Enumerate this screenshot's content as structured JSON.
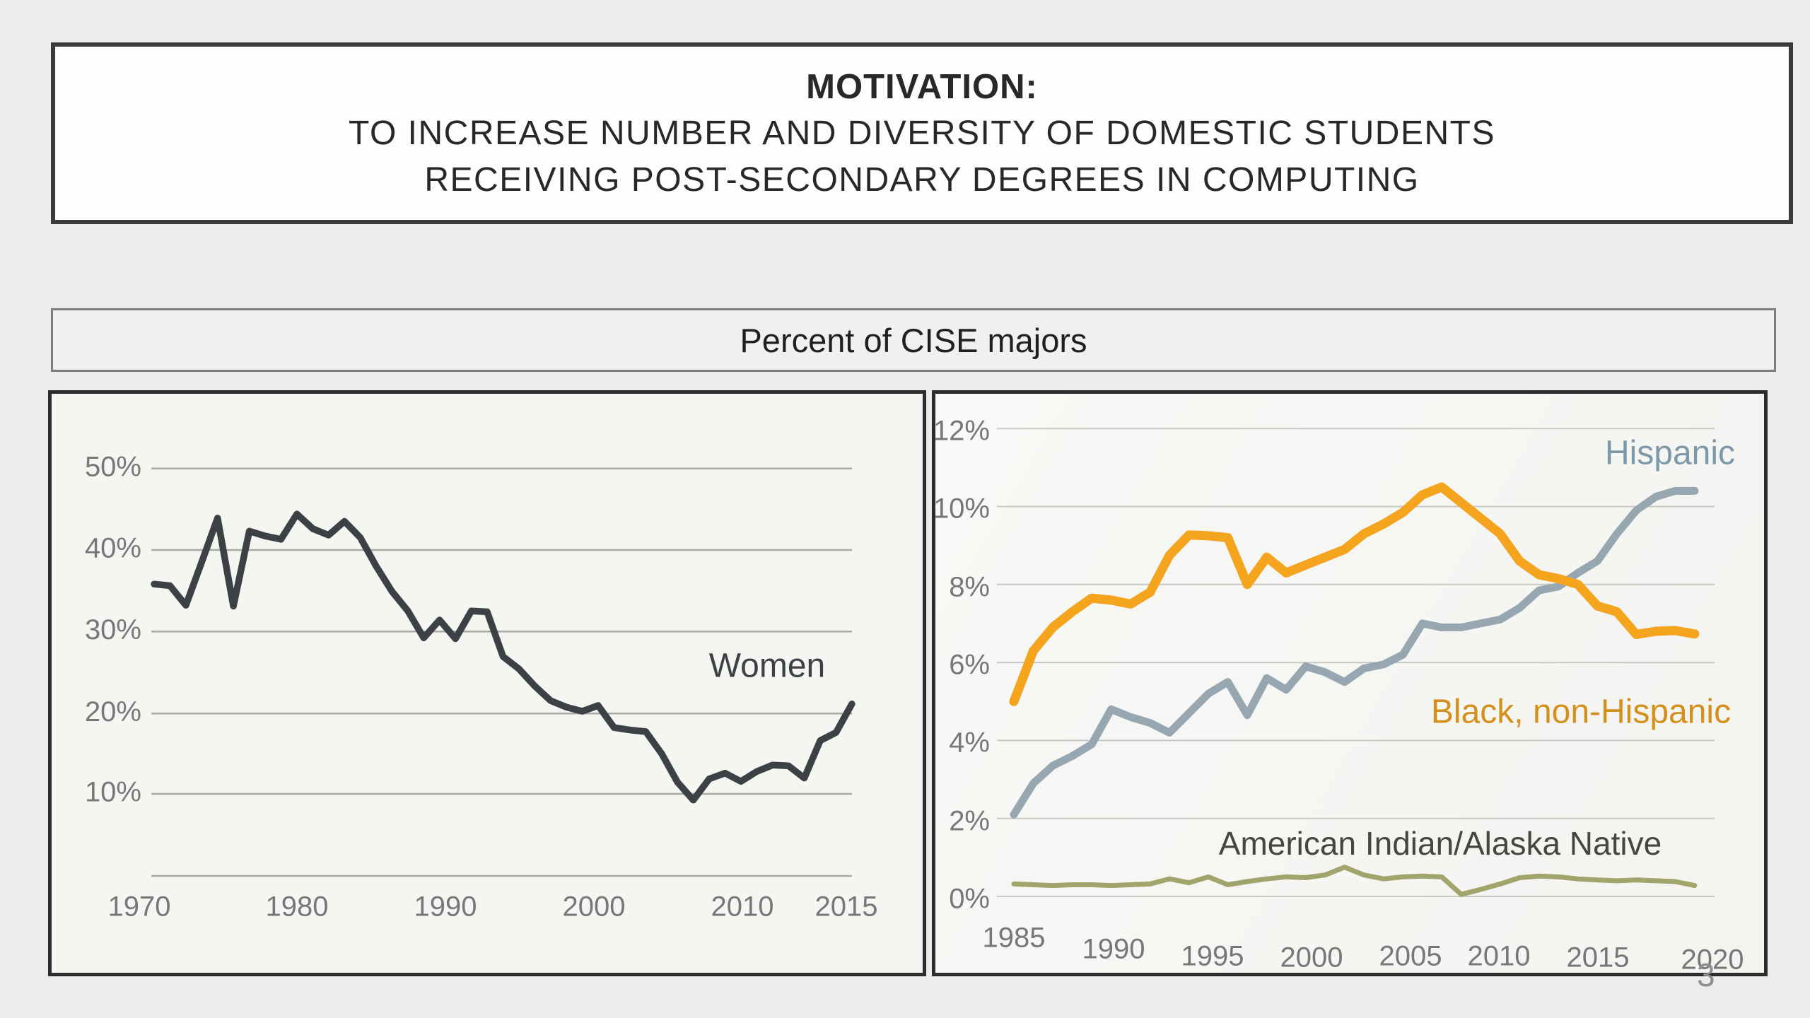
{
  "title": {
    "line1": "MOTIVATION:",
    "line2": "TO INCREASE NUMBER AND DIVERSITY OF DOMESTIC STUDENTS",
    "line3": "RECEIVING POST-SECONDARY DEGREES IN COMPUTING"
  },
  "subtitle": "Percent of CISE majors",
  "page_number": "3",
  "colors": {
    "slide_background": "#ececea",
    "panel_background": "#f5f5f2",
    "title_border": "#3b3b3b",
    "women_line": "#3c4145",
    "hispanic_line": "#96a7b1",
    "hispanic_label": "#7d98a8",
    "black_line": "#f5a41e",
    "black_label": "#d3901d",
    "american_indian_line": "#a1a56b",
    "american_indian_label": "#46463f",
    "axis_label_gray": "#77777a",
    "gridline_left": "#a8a8a6",
    "gridline_right": "#c8c8c5"
  },
  "chart_data": [
    {
      "type": "line",
      "title": "Percent of CISE majors — Women",
      "xlabel": "",
      "ylabel": "",
      "grid": true,
      "legend_position": "inline-right",
      "ylim": [
        0,
        57
      ],
      "xlim": [
        1970,
        2016
      ],
      "y_ticks": [
        "50%",
        "40%",
        "30%",
        "20%",
        "10%"
      ],
      "x_ticks": [
        "1970",
        "1980",
        "1990",
        "2000",
        "2010",
        "2015"
      ],
      "series": [
        {
          "name": "Women",
          "color": "#3c4145",
          "label_color": "#3c4145",
          "x": [
            1971,
            1972,
            1973,
            1974,
            1975,
            1976,
            1977,
            1978,
            1979,
            1980,
            1981,
            1982,
            1983,
            1984,
            1985,
            1986,
            1987,
            1988,
            1989,
            1990,
            1991,
            1992,
            1993,
            1994,
            1995,
            1996,
            1997,
            1998,
            1999,
            2000,
            2001,
            2002,
            2003,
            2004,
            2005,
            2006,
            2007,
            2008,
            2009,
            2010,
            2011,
            2012,
            2013,
            2014,
            2015
          ],
          "values": [
            35.8,
            35.6,
            33.2,
            38.5,
            43.9,
            33.1,
            42.3,
            41.7,
            41.3,
            44.4,
            42.6,
            41.8,
            43.5,
            41.5,
            38.0,
            34.9,
            32.5,
            29.2,
            31.4,
            29.1,
            32.5,
            32.4,
            26.9,
            25.4,
            23.3,
            21.5,
            20.7,
            20.2,
            20.9,
            18.2,
            17.9,
            17.7,
            15.0,
            11.5,
            9.3,
            11.9,
            12.6,
            11.6,
            12.8,
            13.6,
            13.5,
            12.0,
            16.6,
            17.6,
            21.1
          ]
        }
      ]
    },
    {
      "type": "line",
      "title": "Percent of CISE majors — Hispanic, Black non-Hispanic, American Indian/Alaska Native",
      "xlabel": "",
      "ylabel": "",
      "grid": true,
      "legend_position": "inline",
      "ylim": [
        0,
        12.9
      ],
      "xlim": [
        1984.5,
        2020.5
      ],
      "y_ticks": [
        "12%",
        "10%",
        "8%",
        "6%",
        "4%",
        "2%",
        "0%"
      ],
      "x_ticks": [
        "1985",
        "1990",
        "1995",
        "2000",
        "2005",
        "2010",
        "2015",
        "2020"
      ],
      "series": [
        {
          "name": "Hispanic",
          "color": "#96a7b1",
          "label_color": "#7d98a8",
          "x": [
            1985,
            1986,
            1987,
            1988,
            1989,
            1990,
            1991,
            1992,
            1993,
            1994,
            1995,
            1996,
            1997,
            1998,
            1999,
            2000,
            2001,
            2002,
            2003,
            2004,
            2005,
            2006,
            2007,
            2008,
            2009,
            2010,
            2011,
            2012,
            2013,
            2014,
            2015,
            2016,
            2017,
            2018,
            2019,
            2020
          ],
          "values": [
            2.1,
            2.9,
            3.35,
            3.6,
            3.9,
            4.8,
            4.6,
            4.45,
            4.2,
            4.7,
            5.2,
            5.5,
            4.65,
            5.6,
            5.3,
            5.9,
            5.75,
            5.5,
            5.85,
            5.95,
            6.2,
            7.0,
            6.9,
            6.9,
            7.0,
            7.1,
            7.4,
            7.85,
            7.95,
            8.3,
            8.6,
            9.3,
            9.9,
            10.25,
            10.4,
            10.4
          ]
        },
        {
          "name": "Black, non-Hispanic",
          "color": "#f5a41e",
          "label_color": "#d3901d",
          "x": [
            1985,
            1986,
            1987,
            1988,
            1989,
            1990,
            1991,
            1992,
            1993,
            1994,
            1995,
            1996,
            1997,
            1998,
            1999,
            2000,
            2001,
            2002,
            2003,
            2004,
            2005,
            2006,
            2007,
            2008,
            2009,
            2010,
            2011,
            2012,
            2013,
            2014,
            2015,
            2016,
            2017,
            2018,
            2019,
            2020
          ],
          "values": [
            5.0,
            6.3,
            6.9,
            7.3,
            7.65,
            7.6,
            7.5,
            7.8,
            8.75,
            9.27,
            9.25,
            9.2,
            8.0,
            8.7,
            8.3,
            8.5,
            8.7,
            8.9,
            9.3,
            9.55,
            9.85,
            10.3,
            10.5,
            10.1,
            9.7,
            9.3,
            8.6,
            8.25,
            8.15,
            8.0,
            7.45,
            7.3,
            6.72,
            6.8,
            6.82,
            6.73
          ]
        },
        {
          "name": "American Indian/Alaska Native",
          "color": "#a1a56b",
          "label_color": "#46463f",
          "x": [
            1985,
            1986,
            1987,
            1988,
            1989,
            1990,
            1991,
            1992,
            1993,
            1994,
            1995,
            1996,
            1997,
            1998,
            1999,
            2000,
            2001,
            2002,
            2003,
            2004,
            2005,
            2006,
            2007,
            2008,
            2009,
            2010,
            2011,
            2012,
            2013,
            2014,
            2015,
            2016,
            2017,
            2018,
            2019,
            2020
          ],
          "values": [
            0.32,
            0.3,
            0.28,
            0.3,
            0.3,
            0.28,
            0.3,
            0.32,
            0.45,
            0.35,
            0.5,
            0.3,
            0.38,
            0.45,
            0.5,
            0.48,
            0.55,
            0.75,
            0.55,
            0.45,
            0.5,
            0.52,
            0.5,
            0.05,
            0.18,
            0.32,
            0.48,
            0.52,
            0.5,
            0.45,
            0.42,
            0.4,
            0.42,
            0.4,
            0.38,
            0.28
          ]
        }
      ]
    }
  ]
}
